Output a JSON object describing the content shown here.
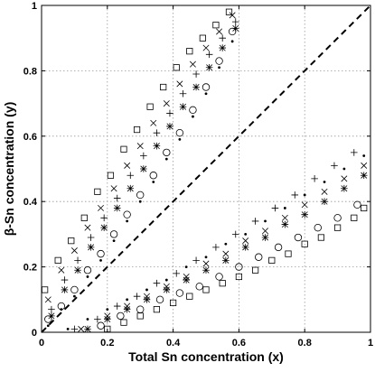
{
  "chart_data": {
    "type": "scatter",
    "title": "",
    "xlabel": "Total Sn concentration (x)",
    "ylabel": "β-Sn concentration (y)",
    "xlim": [
      0,
      1
    ],
    "ylim": [
      0,
      1
    ],
    "grid": true,
    "x_ticks": [
      "0",
      "0.2",
      "0.4",
      "0.6",
      "0.8",
      "1"
    ],
    "y_ticks": [
      "0",
      "0.2",
      "0.4",
      "0.6",
      "0.8",
      "1"
    ],
    "reference_line": {
      "style": "dashed",
      "x": [
        0,
        1
      ],
      "y": [
        0,
        1
      ]
    },
    "series": [
      {
        "marker": "square",
        "upper": {
          "x": [
            0.01,
            0.05,
            0.09,
            0.13,
            0.17,
            0.21,
            0.25,
            0.29,
            0.33,
            0.37,
            0.41,
            0.45,
            0.49,
            0.53,
            0.57
          ],
          "y": [
            0.13,
            0.22,
            0.28,
            0.35,
            0.43,
            0.48,
            0.56,
            0.62,
            0.69,
            0.75,
            0.81,
            0.86,
            0.9,
            0.94,
            0.98
          ]
        },
        "lower": {
          "x": [
            0.2,
            0.25,
            0.3,
            0.35,
            0.4,
            0.45,
            0.5,
            0.55,
            0.6,
            0.65,
            0.7,
            0.75,
            0.8,
            0.85,
            0.9,
            0.95,
            0.98
          ],
          "y": [
            0.01,
            0.03,
            0.05,
            0.07,
            0.09,
            0.11,
            0.13,
            0.15,
            0.17,
            0.19,
            0.22,
            0.24,
            0.27,
            0.29,
            0.32,
            0.35,
            0.38
          ]
        }
      },
      {
        "marker": "x",
        "upper": {
          "x": [
            0.02,
            0.06,
            0.1,
            0.14,
            0.18,
            0.22,
            0.26,
            0.3,
            0.34,
            0.38,
            0.42,
            0.46,
            0.5,
            0.54,
            0.58
          ],
          "y": [
            0.1,
            0.19,
            0.25,
            0.32,
            0.38,
            0.44,
            0.51,
            0.57,
            0.64,
            0.7,
            0.76,
            0.82,
            0.87,
            0.92,
            0.97
          ]
        },
        "lower": {
          "x": [
            0.12,
            0.2,
            0.26,
            0.32,
            0.38,
            0.44,
            0.5,
            0.56,
            0.62,
            0.68,
            0.74,
            0.8,
            0.86,
            0.92,
            0.98
          ],
          "y": [
            0.01,
            0.05,
            0.08,
            0.11,
            0.14,
            0.17,
            0.21,
            0.24,
            0.28,
            0.31,
            0.35,
            0.39,
            0.43,
            0.47,
            0.51
          ]
        }
      },
      {
        "marker": "plus",
        "upper": {
          "x": [
            0.03,
            0.07,
            0.11,
            0.15,
            0.19,
            0.23,
            0.27,
            0.31,
            0.35,
            0.39,
            0.43,
            0.47,
            0.51,
            0.55,
            0.59
          ],
          "y": [
            0.07,
            0.16,
            0.22,
            0.29,
            0.35,
            0.41,
            0.48,
            0.54,
            0.61,
            0.67,
            0.73,
            0.79,
            0.85,
            0.9,
            0.95
          ]
        },
        "lower": {
          "x": [
            0.1,
            0.17,
            0.23,
            0.29,
            0.35,
            0.41,
            0.47,
            0.53,
            0.59,
            0.65,
            0.71,
            0.77,
            0.83,
            0.89,
            0.95
          ],
          "y": [
            0.01,
            0.04,
            0.08,
            0.11,
            0.15,
            0.18,
            0.22,
            0.26,
            0.3,
            0.34,
            0.38,
            0.42,
            0.47,
            0.51,
            0.55
          ]
        }
      },
      {
        "marker": "asterisk",
        "upper": {
          "x": [
            0.03,
            0.07,
            0.11,
            0.15,
            0.19,
            0.23,
            0.27,
            0.31,
            0.35,
            0.39,
            0.43,
            0.47,
            0.51,
            0.55,
            0.59
          ],
          "y": [
            0.05,
            0.13,
            0.19,
            0.26,
            0.32,
            0.38,
            0.44,
            0.5,
            0.57,
            0.63,
            0.69,
            0.75,
            0.81,
            0.87,
            0.93
          ]
        },
        "lower": {
          "x": [
            0.14,
            0.2,
            0.26,
            0.32,
            0.38,
            0.44,
            0.5,
            0.56,
            0.62,
            0.68,
            0.74,
            0.8,
            0.86,
            0.92,
            0.98
          ],
          "y": [
            0.01,
            0.04,
            0.07,
            0.1,
            0.13,
            0.16,
            0.19,
            0.22,
            0.26,
            0.29,
            0.33,
            0.36,
            0.4,
            0.44,
            0.48
          ]
        }
      },
      {
        "marker": "circle",
        "upper": {
          "x": [
            0.02,
            0.06,
            0.1,
            0.14,
            0.18,
            0.22,
            0.26,
            0.3,
            0.34,
            0.38,
            0.42,
            0.46,
            0.5,
            0.54,
            0.58
          ],
          "y": [
            0.04,
            0.08,
            0.13,
            0.19,
            0.24,
            0.3,
            0.36,
            0.42,
            0.48,
            0.55,
            0.61,
            0.68,
            0.75,
            0.83,
            0.92
          ]
        },
        "lower": {
          "x": [
            0.18,
            0.24,
            0.3,
            0.36,
            0.42,
            0.48,
            0.54,
            0.6,
            0.66,
            0.72,
            0.78,
            0.84,
            0.9,
            0.96
          ],
          "y": [
            0.02,
            0.05,
            0.07,
            0.1,
            0.12,
            0.14,
            0.17,
            0.2,
            0.23,
            0.26,
            0.29,
            0.32,
            0.35,
            0.39
          ]
        }
      },
      {
        "marker": "dot",
        "upper": {
          "x": [
            0.02,
            0.06,
            0.1,
            0.14,
            0.18,
            0.22,
            0.26,
            0.3,
            0.34,
            0.38,
            0.42,
            0.46,
            0.5,
            0.54,
            0.58
          ],
          "y": [
            0.02,
            0.07,
            0.11,
            0.17,
            0.22,
            0.28,
            0.34,
            0.4,
            0.46,
            0.53,
            0.59,
            0.66,
            0.73,
            0.81,
            0.89
          ]
        },
        "lower": {
          "x": [
            0.08,
            0.14,
            0.2,
            0.26,
            0.32,
            0.38,
            0.44,
            0.5,
            0.56,
            0.62,
            0.68,
            0.74,
            0.8,
            0.86,
            0.92,
            0.98
          ],
          "y": [
            0.01,
            0.04,
            0.07,
            0.1,
            0.13,
            0.16,
            0.2,
            0.23,
            0.27,
            0.3,
            0.34,
            0.38,
            0.42,
            0.46,
            0.5,
            0.54
          ]
        }
      }
    ]
  }
}
